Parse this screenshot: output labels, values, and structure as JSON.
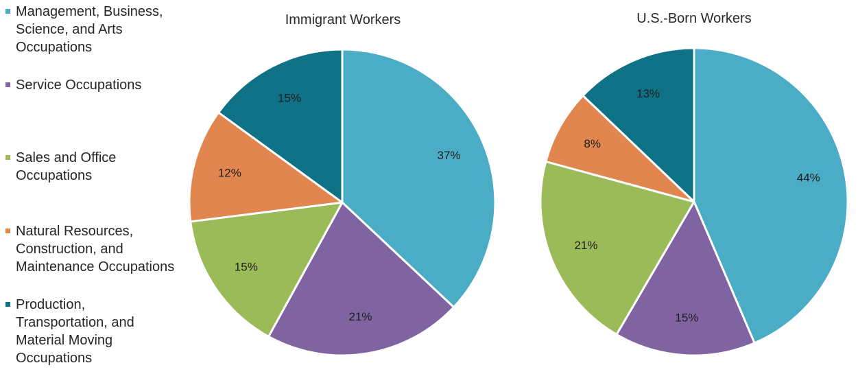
{
  "colors": {
    "management": "#4BACC6",
    "service": "#8064A2",
    "sales": "#9BBB59",
    "natural": "#E0864E",
    "production": "#0E7185"
  },
  "legend": [
    {
      "key": "management",
      "label": "Management, Business, Science, and Arts Occupations"
    },
    {
      "key": "service",
      "label": "Service Occupations"
    },
    {
      "key": "sales",
      "label": "Sales and Office Occupations"
    },
    {
      "key": "natural",
      "label": "Natural Resources, Construction, and Maintenance Occupations"
    },
    {
      "key": "production",
      "label": "Production, Transportation, and Material Moving Occupations"
    }
  ],
  "chart_data": [
    {
      "type": "pie",
      "title": "Immigrant Workers",
      "categories": [
        "Management, Business, Science, and Arts Occupations",
        "Service Occupations",
        "Sales and Office Occupations",
        "Natural Resources, Construction, and Maintenance Occupations",
        "Production, Transportation, and Material Moving Occupations"
      ],
      "keys": [
        "management",
        "service",
        "sales",
        "natural",
        "production"
      ],
      "values": [
        37,
        21,
        15,
        12,
        15
      ],
      "labels": [
        "37%",
        "21%",
        "15%",
        "12%",
        "15%"
      ]
    },
    {
      "type": "pie",
      "title": "U.S.-Born Workers",
      "categories": [
        "Management, Business, Science, and Arts Occupations",
        "Service Occupations",
        "Sales and Office Occupations",
        "Natural Resources, Construction, and Maintenance Occupations",
        "Production, Transportation, and Material Moving Occupations"
      ],
      "keys": [
        "management",
        "service",
        "sales",
        "natural",
        "production"
      ],
      "values": [
        44,
        15,
        21,
        8,
        13
      ],
      "labels": [
        "44%",
        "15%",
        "21%",
        "8%",
        "13%"
      ]
    }
  ]
}
